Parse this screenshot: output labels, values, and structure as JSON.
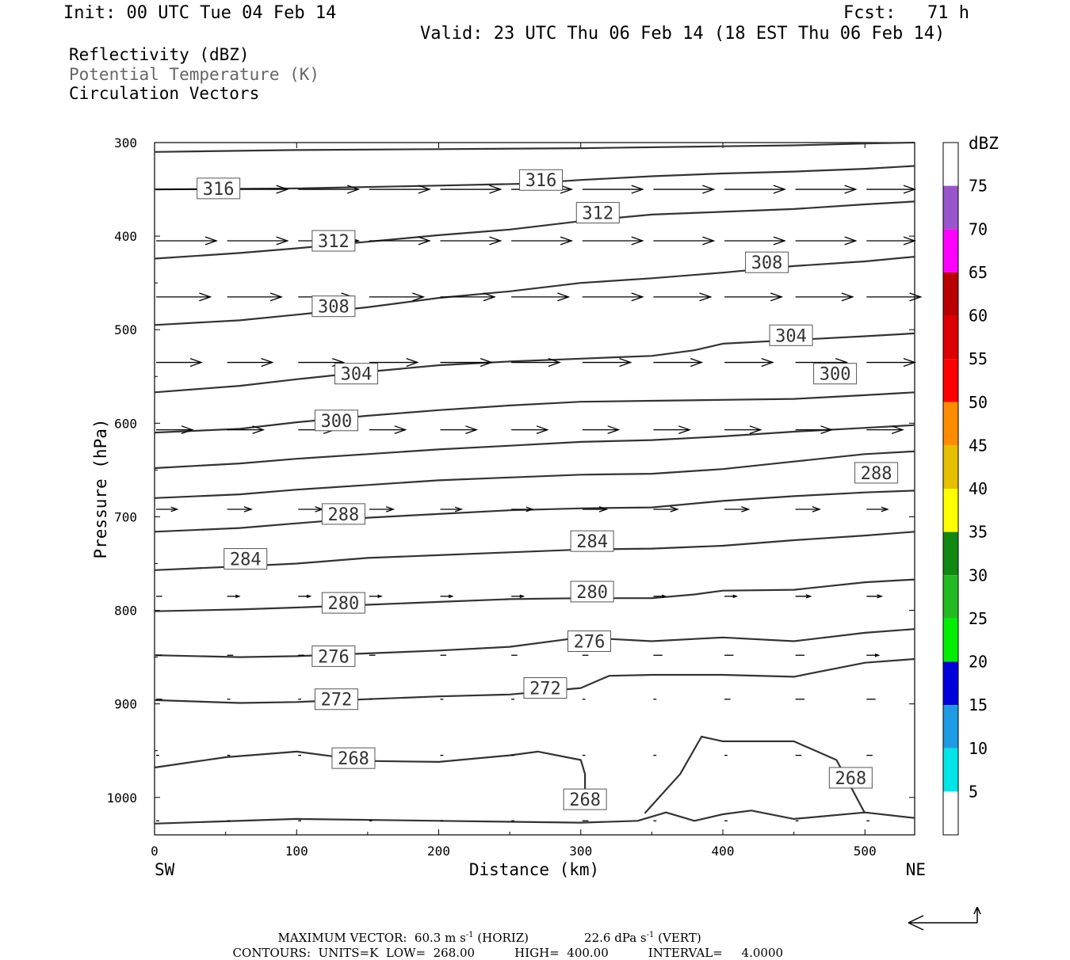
{
  "header": {
    "init": "Init: 00 UTC Tue 04 Feb 14",
    "fcst": "Fcst:   71 h",
    "valid": "Valid: 23 UTC Thu 06 Feb 14 (18 EST Thu 06 Feb 14)"
  },
  "legend": {
    "line1": "Reflectivity (dBZ)",
    "line2": "Potential Temperature (K)",
    "line3": "Circulation Vectors",
    "line2_color": "#666666"
  },
  "colorbar": {
    "unit": "dBZ",
    "levels": [
      5,
      10,
      15,
      20,
      25,
      30,
      35,
      40,
      45,
      50,
      55,
      60,
      65,
      70,
      75
    ],
    "colors": [
      "#00e5e5",
      "#1e9be5",
      "#0000dd",
      "#00ee00",
      "#22bb22",
      "#118811",
      "#ffff00",
      "#e5bf00",
      "#ff8c00",
      "#ff0000",
      "#dd0000",
      "#bb0000",
      "#ff00ff",
      "#9955cc",
      "#ffffff"
    ]
  },
  "chart_data": {
    "type": "line",
    "title": "Potential Temperature (K)",
    "xlabel": "Distance (km)",
    "ylabel": "Pressure (hPa)",
    "x_ticks": [
      0,
      100,
      200,
      300,
      400,
      500
    ],
    "y_ticks": [
      300,
      400,
      500,
      600,
      700,
      800,
      900,
      1000
    ],
    "xlim": [
      0,
      535
    ],
    "ylim": [
      300,
      1040
    ],
    "y_inverted": true,
    "x_left_label": "SW",
    "x_right_label": "NE",
    "contour_labels": [
      {
        "text": "316",
        "x": 45,
        "p": 349
      },
      {
        "text": "316",
        "x": 272,
        "p": 340
      },
      {
        "text": "312",
        "x": 312,
        "p": 375
      },
      {
        "text": "312",
        "x": 126,
        "p": 405
      },
      {
        "text": "308",
        "x": 431,
        "p": 428
      },
      {
        "text": "308",
        "x": 126,
        "p": 475
      },
      {
        "text": "304",
        "x": 448,
        "p": 506
      },
      {
        "text": "304",
        "x": 142,
        "p": 547
      },
      {
        "text": "300",
        "x": 479,
        "p": 547
      },
      {
        "text": "300",
        "x": 128,
        "p": 597
      },
      {
        "text": "288",
        "x": 508,
        "p": 653
      },
      {
        "text": "288",
        "x": 133,
        "p": 697
      },
      {
        "text": "284",
        "x": 308,
        "p": 726
      },
      {
        "text": "284",
        "x": 64,
        "p": 745
      },
      {
        "text": "280",
        "x": 308,
        "p": 780
      },
      {
        "text": "280",
        "x": 133,
        "p": 792
      },
      {
        "text": "276",
        "x": 306,
        "p": 833
      },
      {
        "text": "276",
        "x": 126,
        "p": 849
      },
      {
        "text": "272",
        "x": 275,
        "p": 883
      },
      {
        "text": "272",
        "x": 128,
        "p": 895
      },
      {
        "text": "268",
        "x": 140,
        "p": 958
      },
      {
        "text": "268",
        "x": 490,
        "p": 979
      },
      {
        "text": "268",
        "x": 303,
        "p": 1002
      }
    ],
    "contours": [
      {
        "x": [
          0,
          100,
          200,
          300,
          400,
          450,
          500,
          535
        ],
        "p": [
          310,
          308,
          307,
          306,
          304,
          303,
          301,
          300
        ]
      },
      {
        "x": [
          0,
          100,
          200,
          260,
          300,
          350,
          400,
          450,
          500,
          535
        ],
        "p": [
          350,
          349,
          346,
          344,
          340,
          336,
          333,
          331,
          328,
          325
        ]
      },
      {
        "x": [
          0,
          60,
          100,
          150,
          200,
          250,
          300,
          350,
          400,
          450,
          500,
          535
        ],
        "p": [
          424,
          418,
          413,
          406,
          399,
          393,
          384,
          377,
          374,
          371,
          366,
          363
        ]
      },
      {
        "x": [
          0,
          60,
          100,
          150,
          200,
          250,
          300,
          350,
          400,
          450,
          500,
          535
        ],
        "p": [
          495,
          490,
          484,
          476,
          466,
          459,
          450,
          445,
          439,
          432,
          427,
          422
        ]
      },
      {
        "x": [
          0,
          60,
          100,
          150,
          200,
          250,
          300,
          350,
          380,
          400,
          450,
          500,
          535
        ],
        "p": [
          567,
          560,
          553,
          545,
          538,
          534,
          531,
          528,
          522,
          515,
          511,
          507,
          504
        ]
      },
      {
        "x": [
          0,
          60,
          100,
          150,
          200,
          250,
          300,
          350,
          400,
          450,
          500,
          535
        ],
        "p": [
          610,
          606,
          599,
          592,
          586,
          581,
          577,
          576,
          575,
          574,
          570,
          567
        ]
      },
      {
        "x": [
          0,
          60,
          100,
          150,
          200,
          250,
          300,
          350,
          400,
          450,
          500,
          535
        ],
        "p": [
          648,
          643,
          638,
          633,
          628,
          624,
          620,
          618,
          614,
          609,
          605,
          602
        ]
      },
      {
        "x": [
          0,
          60,
          100,
          150,
          200,
          250,
          300,
          350,
          400,
          450,
          500,
          535
        ],
        "p": [
          680,
          676,
          671,
          666,
          661,
          658,
          655,
          654,
          649,
          641,
          633,
          630
        ]
      },
      {
        "x": [
          0,
          60,
          100,
          150,
          200,
          250,
          300,
          350,
          400,
          450,
          500,
          535
        ],
        "p": [
          716,
          712,
          707,
          701,
          697,
          693,
          691,
          690,
          683,
          678,
          674,
          672
        ]
      },
      {
        "x": [
          0,
          60,
          100,
          150,
          200,
          250,
          300,
          350,
          400,
          450,
          500,
          535
        ],
        "p": [
          757,
          753,
          750,
          744,
          741,
          738,
          735,
          734,
          731,
          725,
          720,
          716
        ]
      },
      {
        "x": [
          0,
          60,
          100,
          150,
          200,
          250,
          300,
          350,
          380,
          400,
          450,
          500,
          535
        ],
        "p": [
          801,
          799,
          797,
          794,
          791,
          788,
          787,
          787,
          783,
          779,
          778,
          770,
          767
        ]
      },
      {
        "x": [
          0,
          60,
          100,
          150,
          200,
          250,
          300,
          350,
          400,
          450,
          500,
          535
        ],
        "p": [
          848,
          850,
          849,
          846,
          843,
          839,
          829,
          833,
          829,
          833,
          824,
          820
        ]
      },
      {
        "x": [
          0,
          60,
          100,
          150,
          200,
          250,
          300,
          320,
          350,
          400,
          450,
          500,
          535
        ],
        "p": [
          896,
          899,
          898,
          895,
          892,
          890,
          883,
          870,
          869,
          869,
          871,
          856,
          852
        ]
      },
      {
        "x": [
          0,
          50,
          100,
          150,
          200,
          250,
          270,
          300,
          303,
          303
        ],
        "p": [
          968,
          957,
          951,
          961,
          962,
          955,
          951,
          960,
          975,
          1000
        ]
      },
      {
        "x": [
          345,
          370,
          385,
          400,
          450,
          480,
          500
        ],
        "p": [
          1017,
          975,
          935,
          940,
          940,
          960,
          1017
        ]
      },
      {
        "x": [
          0,
          100,
          200,
          300,
          340,
          360,
          380,
          400,
          420,
          450,
          500,
          535
        ],
        "p": [
          1028,
          1023,
          1025,
          1027,
          1025,
          1016,
          1025,
          1018,
          1014,
          1023,
          1016,
          1022
        ]
      }
    ],
    "vector_rows": [
      {
        "p": 350,
        "x": [
          0,
          50,
          100,
          150,
          200,
          250,
          300,
          350,
          400,
          450,
          500
        ],
        "u": [
          38,
          40,
          40,
          40,
          40,
          40,
          40,
          40,
          40,
          40,
          32
        ],
        "w": [
          0,
          0,
          0,
          0,
          0,
          0,
          0,
          0,
          0,
          0,
          0
        ]
      },
      {
        "p": 405,
        "x": [
          0,
          50,
          100,
          150,
          200,
          250,
          300,
          350,
          400,
          450,
          500
        ],
        "u": [
          40,
          40,
          40,
          40,
          40,
          40,
          40,
          40,
          40,
          40,
          32
        ],
        "w": [
          0,
          0,
          0,
          0,
          0,
          0,
          0,
          0,
          0,
          0,
          0
        ]
      },
      {
        "p": 465,
        "x": [
          0,
          50,
          100,
          150,
          200,
          250,
          300,
          350,
          400,
          450,
          500
        ],
        "u": [
          36,
          36,
          36,
          36,
          36,
          38,
          40,
          38,
          38,
          38,
          36
        ],
        "w": [
          0,
          0,
          0,
          0,
          0,
          0,
          0,
          0,
          0,
          0,
          0
        ]
      },
      {
        "p": 535,
        "x": [
          0,
          50,
          100,
          150,
          200,
          250,
          300,
          350,
          400,
          450,
          500
        ],
        "u": [
          30,
          30,
          30,
          32,
          34,
          32,
          32,
          32,
          32,
          34,
          32
        ],
        "w": [
          0,
          0,
          0,
          0,
          0,
          0,
          0,
          0,
          0,
          0,
          0
        ]
      },
      {
        "p": 607,
        "x": [
          0,
          50,
          100,
          150,
          200,
          250,
          300,
          350,
          400,
          450,
          500
        ],
        "u": [
          24,
          24,
          24,
          24,
          24,
          24,
          24,
          24,
          24,
          24,
          24
        ],
        "w": [
          0,
          0,
          0,
          0,
          0,
          0,
          0,
          0,
          0,
          0,
          0
        ]
      },
      {
        "p": 692,
        "x": [
          0,
          50,
          100,
          150,
          200,
          250,
          300,
          350,
          400,
          450,
          500
        ],
        "u": [
          14,
          16,
          16,
          16,
          14,
          14,
          16,
          16,
          16,
          16,
          14
        ],
        "w": [
          0,
          0,
          0,
          0,
          0,
          0,
          0,
          0,
          0,
          0,
          0
        ]
      },
      {
        "p": 785,
        "x": [
          0,
          50,
          100,
          150,
          200,
          250,
          300,
          350,
          400,
          450,
          500
        ],
        "u": [
          4,
          8,
          8,
          8,
          8,
          8,
          8,
          8,
          8,
          10,
          10
        ],
        "w": [
          0,
          0,
          0,
          0,
          0,
          0,
          0,
          0,
          0,
          0,
          0
        ]
      },
      {
        "p": 848,
        "x": [
          0,
          50,
          100,
          150,
          200,
          250,
          300,
          350,
          400,
          450,
          500
        ],
        "u": [
          4,
          4,
          4,
          4,
          4,
          4,
          4,
          6,
          6,
          6,
          8
        ],
        "w": [
          0,
          0,
          0,
          0,
          0,
          0,
          0,
          0,
          0,
          0,
          0
        ]
      },
      {
        "p": 895,
        "x": [
          0,
          50,
          100,
          150,
          200,
          250,
          300,
          350,
          400,
          450,
          500
        ],
        "u": [
          4,
          2,
          2,
          2,
          2,
          2,
          2,
          2,
          4,
          6,
          6
        ],
        "w": [
          0,
          0,
          0,
          0,
          0,
          0,
          0,
          0,
          0,
          0,
          0
        ]
      },
      {
        "p": 955,
        "x": [
          0,
          50,
          100,
          150,
          200,
          250,
          300,
          350,
          400,
          450,
          500
        ],
        "u": [
          2,
          2,
          2,
          2,
          2,
          2,
          2,
          2,
          2,
          4,
          4
        ],
        "w": [
          0,
          0,
          0,
          0,
          0,
          0,
          0,
          0,
          0,
          0,
          0
        ]
      },
      {
        "p": 1025,
        "x": [
          0,
          50,
          100,
          150,
          200,
          250,
          300,
          350,
          400,
          450,
          500
        ],
        "u": [
          2,
          2,
          2,
          2,
          2,
          2,
          4,
          2,
          2,
          2,
          2
        ],
        "w": [
          0,
          0,
          0,
          0,
          0,
          0,
          0,
          0,
          0,
          0,
          0
        ]
      }
    ]
  },
  "footer": {
    "line1a": "MAXIMUM VECTOR:  60.3 m s",
    "line1b": " (HORIZ)",
    "line1c": "22.6 dPa s",
    "line1d": " (VERT)",
    "sup": "-1",
    "line2a": "CONTOURS:  UNITS=K  LOW=  268.00",
    "line2b": "HIGH=  400.00",
    "line2c": "INTERVAL=     4.0000"
  }
}
